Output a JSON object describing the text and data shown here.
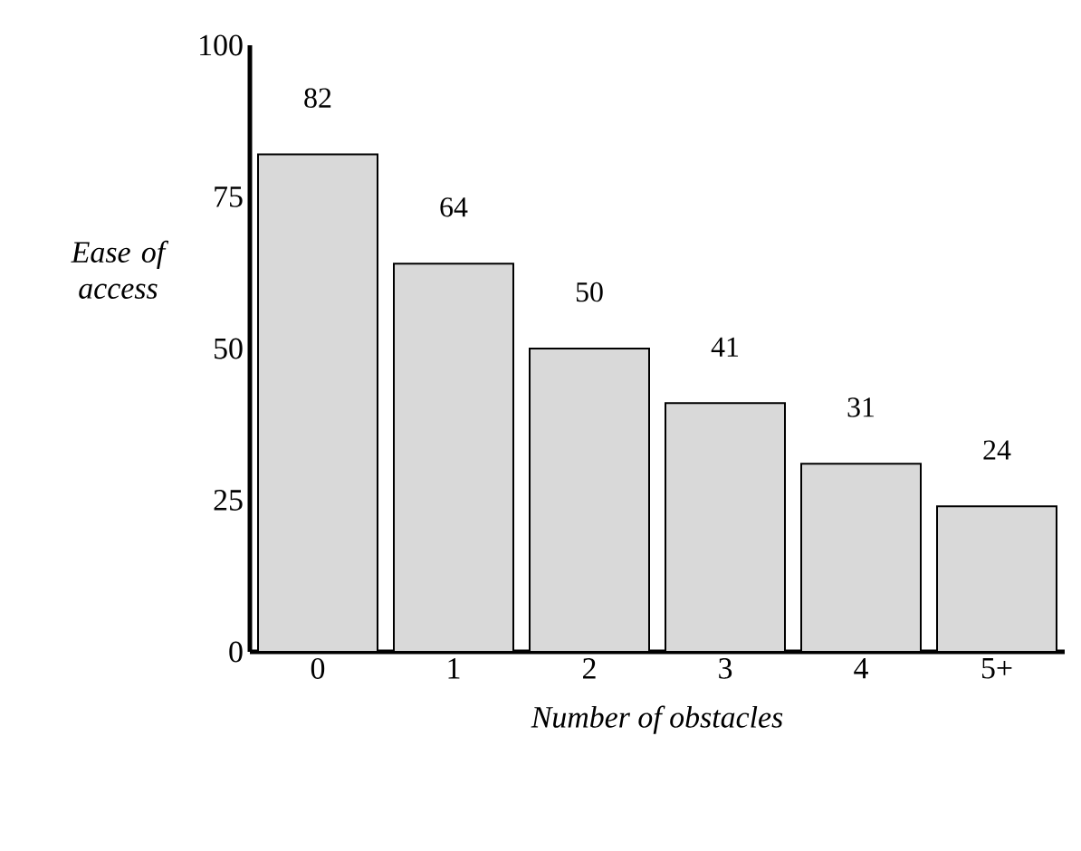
{
  "chart_data": {
    "type": "bar",
    "xlabel": "Number of obstacles",
    "ylabel": "Ease of access",
    "categories": [
      "0",
      "1",
      "2",
      "3",
      "4",
      "5+"
    ],
    "values": [
      82,
      64,
      50,
      41,
      31,
      24
    ],
    "color": "#d9d9d9",
    "ylim": [
      0,
      100
    ],
    "yticks": [
      0,
      25,
      50,
      75,
      100
    ],
    "data_labels": true
  }
}
